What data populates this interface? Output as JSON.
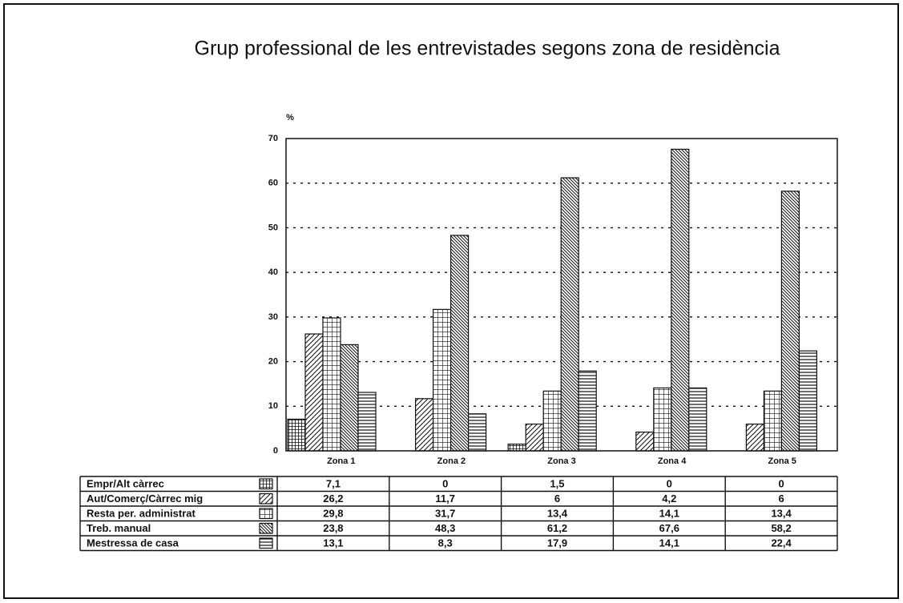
{
  "chart_data": {
    "type": "bar",
    "title": "Grup professional de les entrevistades segons zona de residència",
    "y_label": "%",
    "categories": [
      "Zona 1",
      "Zona 2",
      "Zona 3",
      "Zona 4",
      "Zona 5"
    ],
    "series": [
      {
        "name": "Empr/Alt càrrec",
        "color": "#111111",
        "values": [
          7.1,
          0,
          1.5,
          0,
          0
        ],
        "value_labels": [
          "7,1",
          "0",
          "1,5",
          "0",
          "0"
        ]
      },
      {
        "name": "Aut/Comerç/Càrrec mig",
        "color": "#111111",
        "values": [
          26.2,
          11.7,
          6,
          4.2,
          6
        ],
        "value_labels": [
          "26,2",
          "11,7",
          "6",
          "4,2",
          "6"
        ]
      },
      {
        "name": "Resta per. administrat",
        "color": "#111111",
        "values": [
          29.8,
          31.7,
          13.4,
          14.1,
          13.4
        ],
        "value_labels": [
          "29,8",
          "31,7",
          "13,4",
          "14,1",
          "13,4"
        ]
      },
      {
        "name": "Treb. manual",
        "color": "#111111",
        "values": [
          23.8,
          48.3,
          61.2,
          67.6,
          58.2
        ],
        "value_labels": [
          "23,8",
          "48,3",
          "61,2",
          "67,6",
          "58,2"
        ]
      },
      {
        "name": "Mestressa de casa",
        "color": "#111111",
        "values": [
          13.1,
          8.3,
          17.9,
          14.1,
          22.4
        ],
        "value_labels": [
          "13,1",
          "8,3",
          "17,9",
          "14,1",
          "22,4"
        ]
      }
    ],
    "ylim": [
      0,
      70
    ],
    "yticks": [
      0,
      10,
      20,
      30,
      40,
      50,
      60,
      70
    ],
    "grid": true
  }
}
